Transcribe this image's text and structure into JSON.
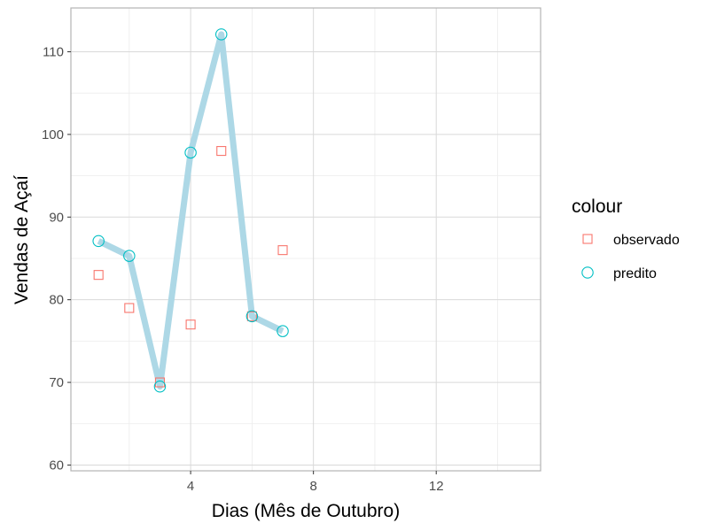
{
  "chart_data": {
    "type": "line",
    "title": "",
    "xlabel": "Dias (Mês de Outubro)",
    "ylabel": "Vendas de Açaí",
    "xlim": [
      0.1,
      15.4
    ],
    "ylim": [
      59.3,
      115.3
    ],
    "x_major_ticks": [
      4,
      8,
      12
    ],
    "x_minor_ticks": [
      2,
      6,
      10,
      14
    ],
    "y_major_ticks": [
      60,
      70,
      80,
      90,
      100,
      110
    ],
    "y_minor_ticks": [
      65,
      75,
      85,
      95,
      105
    ],
    "grid": true,
    "legend": {
      "title": "colour",
      "position": "right",
      "entries": [
        {
          "label": "observado",
          "shape": "square",
          "color": "#F8766D"
        },
        {
          "label": "predito",
          "shape": "circle",
          "color": "#00BFC4"
        }
      ]
    },
    "line_color": "#ADD8E6",
    "series": [
      {
        "name": "observado",
        "shape": "square",
        "color": "#F8766D",
        "x": [
          1,
          2,
          3,
          4,
          5,
          6,
          7
        ],
        "y": [
          83,
          79,
          70,
          77,
          98,
          78,
          86
        ]
      },
      {
        "name": "predito",
        "shape": "circle",
        "color": "#00BFC4",
        "x": [
          1,
          2,
          3,
          4,
          5,
          6,
          7
        ],
        "y": [
          87.1,
          85.3,
          69.5,
          97.8,
          112.1,
          78.0,
          76.2
        ]
      }
    ]
  }
}
